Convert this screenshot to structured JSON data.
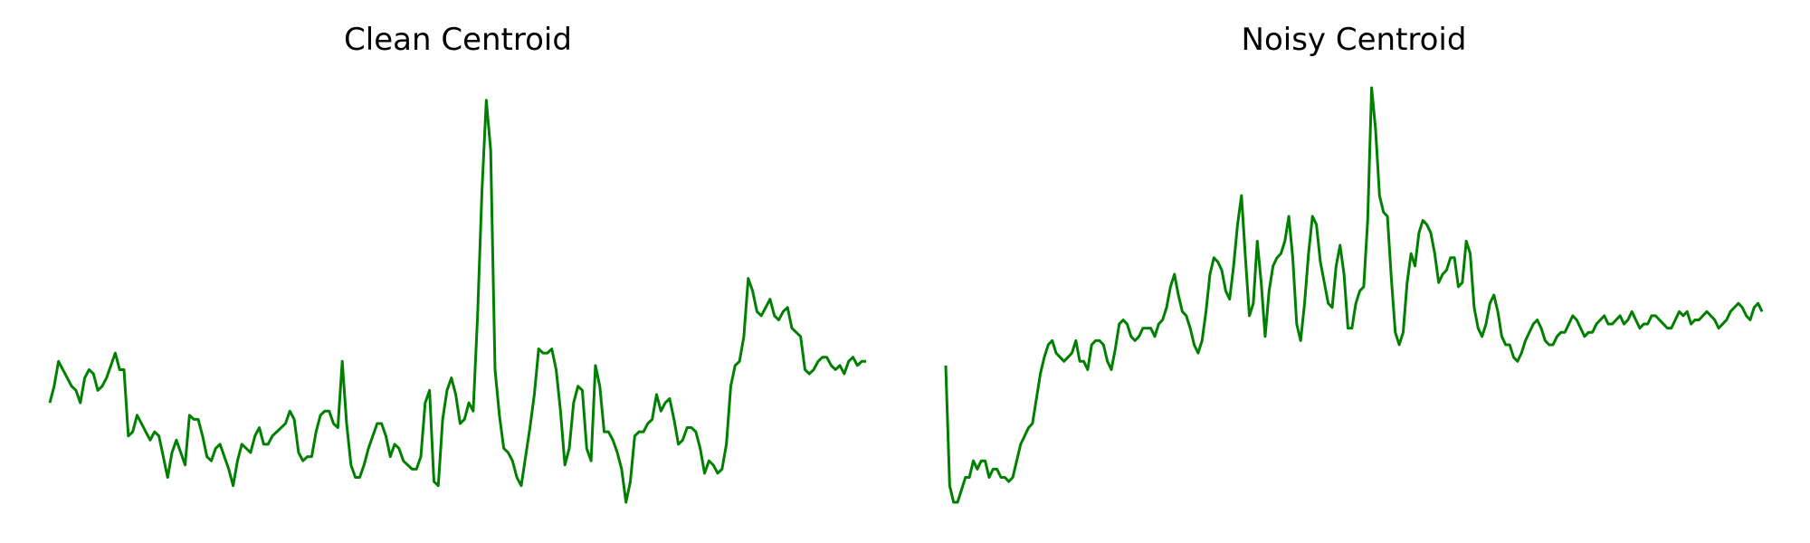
{
  "chart_data": [
    {
      "type": "line",
      "title": "Clean Centroid",
      "axes_visible": false,
      "ylim": [
        0,
        1
      ],
      "series": [
        {
          "color": "#008000",
          "values": [
            0.24,
            0.28,
            0.34,
            0.32,
            0.3,
            0.28,
            0.27,
            0.24,
            0.3,
            0.32,
            0.31,
            0.27,
            0.28,
            0.3,
            0.33,
            0.36,
            0.32,
            0.32,
            0.16,
            0.17,
            0.21,
            0.19,
            0.17,
            0.15,
            0.17,
            0.16,
            0.11,
            0.06,
            0.12,
            0.15,
            0.12,
            0.09,
            0.21,
            0.2,
            0.2,
            0.16,
            0.11,
            0.1,
            0.13,
            0.14,
            0.11,
            0.08,
            0.04,
            0.1,
            0.14,
            0.13,
            0.12,
            0.16,
            0.18,
            0.14,
            0.14,
            0.16,
            0.17,
            0.18,
            0.19,
            0.22,
            0.2,
            0.12,
            0.1,
            0.11,
            0.11,
            0.17,
            0.21,
            0.22,
            0.22,
            0.19,
            0.18,
            0.34,
            0.19,
            0.09,
            0.06,
            0.06,
            0.09,
            0.13,
            0.16,
            0.19,
            0.19,
            0.16,
            0.11,
            0.14,
            0.13,
            0.1,
            0.09,
            0.08,
            0.08,
            0.11,
            0.24,
            0.27,
            0.05,
            0.04,
            0.2,
            0.27,
            0.3,
            0.26,
            0.19,
            0.2,
            0.24,
            0.22,
            0.45,
            0.75,
            0.97,
            0.85,
            0.32,
            0.21,
            0.13,
            0.12,
            0.1,
            0.06,
            0.04,
            0.11,
            0.18,
            0.26,
            0.37,
            0.36,
            0.36,
            0.37,
            0.32,
            0.22,
            0.09,
            0.13,
            0.24,
            0.28,
            0.27,
            0.13,
            0.1,
            0.33,
            0.28,
            0.17,
            0.17,
            0.15,
            0.12,
            0.08,
            0.0,
            0.05,
            0.16,
            0.17,
            0.17,
            0.19,
            0.2,
            0.26,
            0.22,
            0.24,
            0.25,
            0.2,
            0.14,
            0.15,
            0.18,
            0.18,
            0.17,
            0.13,
            0.07,
            0.1,
            0.09,
            0.07,
            0.08,
            0.14,
            0.28,
            0.33,
            0.34,
            0.4,
            0.54,
            0.51,
            0.46,
            0.45,
            0.47,
            0.49,
            0.45,
            0.44,
            0.46,
            0.47,
            0.42,
            0.41,
            0.4,
            0.32,
            0.31,
            0.32,
            0.34,
            0.35,
            0.35,
            0.33,
            0.32,
            0.33,
            0.31,
            0.34,
            0.35,
            0.33,
            0.34,
            0.34
          ]
        }
      ]
    },
    {
      "type": "line",
      "title": "Noisy Centroid",
      "axes_visible": false,
      "ylim": [
        0,
        1
      ],
      "series": [
        {
          "color": "#008000",
          "values": [
            0.33,
            0.04,
            0.0,
            0.0,
            0.03,
            0.06,
            0.06,
            0.1,
            0.08,
            0.1,
            0.1,
            0.06,
            0.08,
            0.08,
            0.06,
            0.06,
            0.05,
            0.06,
            0.1,
            0.14,
            0.16,
            0.18,
            0.19,
            0.25,
            0.31,
            0.35,
            0.38,
            0.39,
            0.36,
            0.35,
            0.34,
            0.35,
            0.36,
            0.39,
            0.34,
            0.34,
            0.32,
            0.38,
            0.39,
            0.39,
            0.38,
            0.34,
            0.32,
            0.37,
            0.43,
            0.44,
            0.43,
            0.4,
            0.39,
            0.4,
            0.42,
            0.42,
            0.42,
            0.4,
            0.43,
            0.44,
            0.47,
            0.52,
            0.55,
            0.5,
            0.46,
            0.45,
            0.42,
            0.38,
            0.36,
            0.39,
            0.46,
            0.55,
            0.59,
            0.58,
            0.56,
            0.51,
            0.49,
            0.57,
            0.67,
            0.74,
            0.59,
            0.45,
            0.48,
            0.63,
            0.53,
            0.4,
            0.51,
            0.57,
            0.59,
            0.6,
            0.63,
            0.69,
            0.59,
            0.43,
            0.39,
            0.48,
            0.6,
            0.69,
            0.67,
            0.58,
            0.53,
            0.48,
            0.47,
            0.57,
            0.62,
            0.55,
            0.42,
            0.42,
            0.48,
            0.51,
            0.52,
            0.68,
            1.0,
            0.9,
            0.74,
            0.7,
            0.69,
            0.54,
            0.41,
            0.38,
            0.41,
            0.53,
            0.6,
            0.57,
            0.65,
            0.68,
            0.67,
            0.65,
            0.6,
            0.53,
            0.55,
            0.56,
            0.59,
            0.59,
            0.52,
            0.53,
            0.63,
            0.6,
            0.47,
            0.42,
            0.4,
            0.43,
            0.48,
            0.5,
            0.46,
            0.4,
            0.38,
            0.38,
            0.35,
            0.34,
            0.36,
            0.39,
            0.41,
            0.43,
            0.44,
            0.42,
            0.39,
            0.38,
            0.38,
            0.4,
            0.41,
            0.41,
            0.43,
            0.45,
            0.44,
            0.42,
            0.4,
            0.41,
            0.41,
            0.43,
            0.44,
            0.45,
            0.43,
            0.43,
            0.44,
            0.45,
            0.43,
            0.44,
            0.46,
            0.44,
            0.42,
            0.43,
            0.43,
            0.45,
            0.45,
            0.44,
            0.43,
            0.42,
            0.42,
            0.44,
            0.46,
            0.45,
            0.46,
            0.43,
            0.44,
            0.44,
            0.45,
            0.46,
            0.45,
            0.44,
            0.42,
            0.43,
            0.44,
            0.46,
            0.47,
            0.48,
            0.47,
            0.45,
            0.44,
            0.47,
            0.48,
            0.46
          ]
        }
      ]
    }
  ]
}
